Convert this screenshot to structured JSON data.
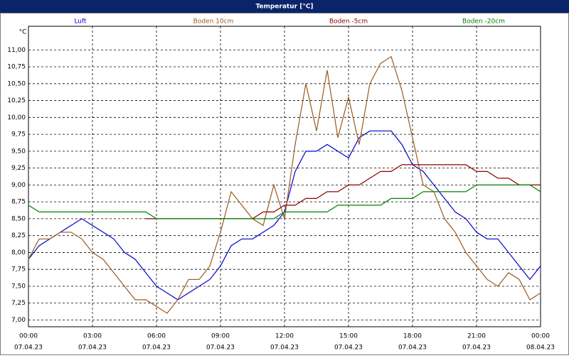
{
  "chart_data": {
    "type": "line",
    "title": "Temperatur [°C]",
    "y_unit": "°C",
    "grid": true,
    "xlim": [
      0,
      24
    ],
    "ylim": [
      6.9,
      11.35
    ],
    "xticks": [
      {
        "value": 0,
        "label": "00:00",
        "date": "07.04.23"
      },
      {
        "value": 3,
        "label": "03:00",
        "date": "07.04.23"
      },
      {
        "value": 6,
        "label": "06:00",
        "date": "07.04.23"
      },
      {
        "value": 9,
        "label": "09:00",
        "date": "07.04.23"
      },
      {
        "value": 12,
        "label": "12:00",
        "date": "07.04.23"
      },
      {
        "value": 15,
        "label": "15:00",
        "date": "07.04.23"
      },
      {
        "value": 18,
        "label": "18:00",
        "date": "07.04.23"
      },
      {
        "value": 21,
        "label": "21:00",
        "date": "07.04.23"
      },
      {
        "value": 24,
        "label": "00:00",
        "date": "08.04.23"
      }
    ],
    "yticks": [
      {
        "value": 7,
        "label": "7,00"
      },
      {
        "value": 7.25,
        "label": "7,25"
      },
      {
        "value": 7.5,
        "label": "7,50"
      },
      {
        "value": 7.75,
        "label": "7,75"
      },
      {
        "value": 8,
        "label": "8,00"
      },
      {
        "value": 8.25,
        "label": "8,25"
      },
      {
        "value": 8.5,
        "label": "8,50"
      },
      {
        "value": 8.75,
        "label": "8,75"
      },
      {
        "value": 9,
        "label": "9,00"
      },
      {
        "value": 9.25,
        "label": "9,25"
      },
      {
        "value": 9.5,
        "label": "9,50"
      },
      {
        "value": 9.75,
        "label": "9,75"
      },
      {
        "value": 10,
        "label": "10,00"
      },
      {
        "value": 10.25,
        "label": "10,25"
      },
      {
        "value": 10.5,
        "label": "10,50"
      },
      {
        "value": 10.75,
        "label": "10,75"
      },
      {
        "value": 11,
        "label": "11,00"
      }
    ],
    "x": [
      0,
      0.5,
      1,
      1.5,
      2,
      2.5,
      3,
      3.5,
      4,
      4.5,
      5,
      5.5,
      6,
      6.5,
      7,
      7.5,
      8,
      8.5,
      9,
      9.5,
      10,
      10.5,
      11,
      11.5,
      12,
      12.5,
      13,
      13.5,
      14,
      14.5,
      15,
      15.5,
      16,
      16.5,
      17,
      17.5,
      18,
      18.5,
      19,
      19.5,
      20,
      20.5,
      21,
      21.5,
      22,
      22.5,
      23,
      23.5,
      24
    ],
    "series": [
      {
        "name": "Luft",
        "color": "#0000cc",
        "values": [
          7.9,
          8.1,
          8.2,
          8.3,
          8.4,
          8.5,
          8.4,
          8.3,
          8.2,
          8.0,
          7.9,
          7.7,
          7.5,
          7.4,
          7.3,
          7.4,
          7.5,
          7.6,
          7.8,
          8.1,
          8.2,
          8.2,
          8.3,
          8.4,
          8.6,
          9.2,
          9.5,
          9.5,
          9.6,
          9.5,
          9.4,
          9.7,
          9.8,
          9.8,
          9.8,
          9.6,
          9.3,
          9.2,
          9.0,
          8.8,
          8.6,
          8.5,
          8.3,
          8.2,
          8.2,
          8.0,
          7.8,
          7.6,
          7.8
        ]
      },
      {
        "name": "Boden 10cm",
        "color": "#9a5a1e",
        "values": [
          7.9,
          8.2,
          8.2,
          8.3,
          8.3,
          8.2,
          8.0,
          7.9,
          7.7,
          7.5,
          7.3,
          7.3,
          7.2,
          7.1,
          7.3,
          7.6,
          7.6,
          7.8,
          8.3,
          8.9,
          8.7,
          8.5,
          8.4,
          9.0,
          8.5,
          9.6,
          10.5,
          9.8,
          10.7,
          9.7,
          10.3,
          9.6,
          10.5,
          10.8,
          10.9,
          10.4,
          9.7,
          9.0,
          8.9,
          8.5,
          8.3,
          8.0,
          7.8,
          7.6,
          7.5,
          7.7,
          7.6,
          7.3,
          7.4
        ]
      },
      {
        "name": "Boden -5cm",
        "color": "#8b0000",
        "values": [
          8.7,
          null,
          null,
          null,
          null,
          null,
          null,
          null,
          null,
          null,
          null,
          8.5,
          8.5,
          8.5,
          8.5,
          8.5,
          8.5,
          8.5,
          8.5,
          8.5,
          8.5,
          8.5,
          8.6,
          8.6,
          8.7,
          8.7,
          8.8,
          8.8,
          8.9,
          8.9,
          9.0,
          9.0,
          9.1,
          9.2,
          9.2,
          9.3,
          9.3,
          9.3,
          9.3,
          9.3,
          9.3,
          9.3,
          9.2,
          9.2,
          9.1,
          9.1,
          9.0,
          9.0,
          9.0
        ]
      },
      {
        "name": "Boden -20cm",
        "color": "#008000",
        "values": [
          8.7,
          8.6,
          8.6,
          8.6,
          8.6,
          8.6,
          8.6,
          8.6,
          8.6,
          8.6,
          8.6,
          8.6,
          8.5,
          8.5,
          8.5,
          8.5,
          8.5,
          8.5,
          8.5,
          8.5,
          8.5,
          8.5,
          8.5,
          8.5,
          8.6,
          8.6,
          8.6,
          8.6,
          8.6,
          8.7,
          8.7,
          8.7,
          8.7,
          8.7,
          8.8,
          8.8,
          8.8,
          8.9,
          8.9,
          8.9,
          8.9,
          8.9,
          9.0,
          9.0,
          9.0,
          9.0,
          9.0,
          9.0,
          8.9
        ]
      }
    ]
  }
}
